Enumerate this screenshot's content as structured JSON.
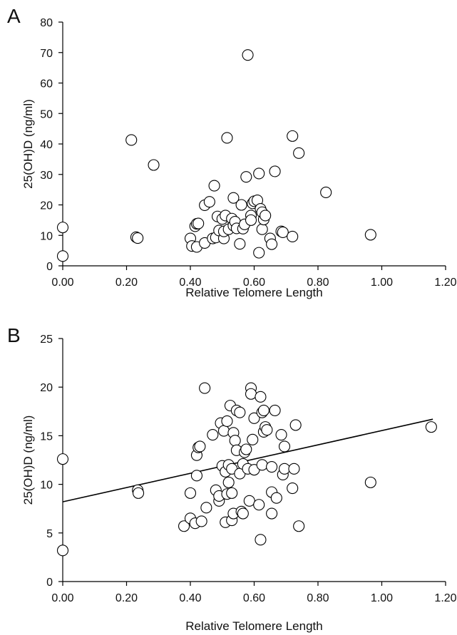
{
  "chart_data": [
    {
      "panel_label": "A",
      "type": "scatter",
      "title": "",
      "xlabel": "Relative Telomere Length",
      "ylabel": "25(OH)D (ng/ml)",
      "xlim": [
        0,
        1.2
      ],
      "ylim": [
        0,
        80
      ],
      "x_ticks": [
        "0.00",
        "0.20",
        "0.40",
        "0.60",
        "0.80",
        "1.00",
        "1.20"
      ],
      "y_ticks": [
        "0",
        "10",
        "20",
        "30",
        "40",
        "50",
        "60",
        "70",
        "80"
      ],
      "grid": false,
      "legend": "none",
      "points": [
        {
          "x": 0.0,
          "y": 12.6
        },
        {
          "x": 0.0,
          "y": 3.2
        },
        {
          "x": 0.215,
          "y": 41.3
        },
        {
          "x": 0.23,
          "y": 9.4
        },
        {
          "x": 0.235,
          "y": 9.1
        },
        {
          "x": 0.285,
          "y": 33.1
        },
        {
          "x": 0.4,
          "y": 9.0
        },
        {
          "x": 0.405,
          "y": 6.5
        },
        {
          "x": 0.415,
          "y": 13.0
        },
        {
          "x": 0.42,
          "y": 13.8
        },
        {
          "x": 0.42,
          "y": 6.2
        },
        {
          "x": 0.425,
          "y": 13.9
        },
        {
          "x": 0.445,
          "y": 7.5
        },
        {
          "x": 0.445,
          "y": 19.9
        },
        {
          "x": 0.46,
          "y": 21.0
        },
        {
          "x": 0.47,
          "y": 9.0
        },
        {
          "x": 0.475,
          "y": 26.3
        },
        {
          "x": 0.48,
          "y": 9.3
        },
        {
          "x": 0.485,
          "y": 16.2
        },
        {
          "x": 0.49,
          "y": 11.6
        },
        {
          "x": 0.5,
          "y": 15.4
        },
        {
          "x": 0.505,
          "y": 9.0
        },
        {
          "x": 0.505,
          "y": 11.3
        },
        {
          "x": 0.51,
          "y": 16.5
        },
        {
          "x": 0.515,
          "y": 42.0
        },
        {
          "x": 0.52,
          "y": 12.0
        },
        {
          "x": 0.53,
          "y": 15.5
        },
        {
          "x": 0.535,
          "y": 22.3
        },
        {
          "x": 0.535,
          "y": 13.2
        },
        {
          "x": 0.54,
          "y": 14.5
        },
        {
          "x": 0.545,
          "y": 12.3
        },
        {
          "x": 0.555,
          "y": 7.2
        },
        {
          "x": 0.56,
          "y": 20.0
        },
        {
          "x": 0.565,
          "y": 12.2
        },
        {
          "x": 0.57,
          "y": 13.6
        },
        {
          "x": 0.575,
          "y": 29.2
        },
        {
          "x": 0.58,
          "y": 69.2
        },
        {
          "x": 0.59,
          "y": 16.5
        },
        {
          "x": 0.59,
          "y": 15.0
        },
        {
          "x": 0.595,
          "y": 20.5
        },
        {
          "x": 0.6,
          "y": 21.2
        },
        {
          "x": 0.61,
          "y": 21.5
        },
        {
          "x": 0.615,
          "y": 4.3
        },
        {
          "x": 0.615,
          "y": 30.3
        },
        {
          "x": 0.62,
          "y": 18.7
        },
        {
          "x": 0.625,
          "y": 17.6
        },
        {
          "x": 0.625,
          "y": 12.0
        },
        {
          "x": 0.63,
          "y": 15.2
        },
        {
          "x": 0.635,
          "y": 16.5
        },
        {
          "x": 0.65,
          "y": 9.0
        },
        {
          "x": 0.655,
          "y": 7.1
        },
        {
          "x": 0.665,
          "y": 31.0
        },
        {
          "x": 0.685,
          "y": 11.3
        },
        {
          "x": 0.69,
          "y": 11.0
        },
        {
          "x": 0.72,
          "y": 42.6
        },
        {
          "x": 0.72,
          "y": 9.6
        },
        {
          "x": 0.74,
          "y": 37.0
        },
        {
          "x": 0.825,
          "y": 24.1
        },
        {
          "x": 0.965,
          "y": 10.2
        }
      ]
    },
    {
      "panel_label": "B",
      "type": "scatter",
      "title": "",
      "xlabel": "Relative Telomere Length",
      "ylabel": "25(OH)D (ng/ml)",
      "xlim": [
        0,
        1.2
      ],
      "ylim": [
        0,
        25
      ],
      "x_ticks": [
        "0.00",
        "0.20",
        "0.40",
        "0.60",
        "0.80",
        "1.00",
        "1.20"
      ],
      "y_ticks": [
        "0",
        "5",
        "10",
        "15",
        "20",
        "25"
      ],
      "grid": false,
      "legend": "none",
      "trendline": {
        "x": [
          0.0,
          1.16
        ],
        "y": [
          8.2,
          16.7
        ]
      },
      "points": [
        {
          "x": 0.0,
          "y": 12.6
        },
        {
          "x": 0.0,
          "y": 3.2
        },
        {
          "x": 0.235,
          "y": 9.4
        },
        {
          "x": 0.237,
          "y": 9.1
        },
        {
          "x": 0.38,
          "y": 5.7
        },
        {
          "x": 0.4,
          "y": 9.1
        },
        {
          "x": 0.4,
          "y": 6.5
        },
        {
          "x": 0.415,
          "y": 6.0
        },
        {
          "x": 0.42,
          "y": 13.0
        },
        {
          "x": 0.42,
          "y": 10.9
        },
        {
          "x": 0.425,
          "y": 13.8
        },
        {
          "x": 0.43,
          "y": 13.9
        },
        {
          "x": 0.435,
          "y": 6.2
        },
        {
          "x": 0.445,
          "y": 19.9
        },
        {
          "x": 0.45,
          "y": 7.6
        },
        {
          "x": 0.47,
          "y": 15.1
        },
        {
          "x": 0.48,
          "y": 9.4
        },
        {
          "x": 0.49,
          "y": 8.3
        },
        {
          "x": 0.49,
          "y": 8.8
        },
        {
          "x": 0.495,
          "y": 16.3
        },
        {
          "x": 0.5,
          "y": 11.9
        },
        {
          "x": 0.505,
          "y": 15.5
        },
        {
          "x": 0.51,
          "y": 6.1
        },
        {
          "x": 0.51,
          "y": 11.3
        },
        {
          "x": 0.515,
          "y": 9.0
        },
        {
          "x": 0.515,
          "y": 16.5
        },
        {
          "x": 0.52,
          "y": 12.0
        },
        {
          "x": 0.52,
          "y": 10.2
        },
        {
          "x": 0.525,
          "y": 18.1
        },
        {
          "x": 0.53,
          "y": 11.6
        },
        {
          "x": 0.53,
          "y": 9.1
        },
        {
          "x": 0.53,
          "y": 6.3
        },
        {
          "x": 0.535,
          "y": 15.3
        },
        {
          "x": 0.535,
          "y": 7.0
        },
        {
          "x": 0.54,
          "y": 14.5
        },
        {
          "x": 0.545,
          "y": 13.5
        },
        {
          "x": 0.545,
          "y": 17.6
        },
        {
          "x": 0.555,
          "y": 17.4
        },
        {
          "x": 0.555,
          "y": 11.1
        },
        {
          "x": 0.56,
          "y": 7.2
        },
        {
          "x": 0.565,
          "y": 12.1
        },
        {
          "x": 0.565,
          "y": 7.0
        },
        {
          "x": 0.57,
          "y": 13.3
        },
        {
          "x": 0.575,
          "y": 13.6
        },
        {
          "x": 0.58,
          "y": 11.6
        },
        {
          "x": 0.585,
          "y": 8.3
        },
        {
          "x": 0.59,
          "y": 19.9
        },
        {
          "x": 0.59,
          "y": 19.3
        },
        {
          "x": 0.595,
          "y": 14.6
        },
        {
          "x": 0.6,
          "y": 16.8
        },
        {
          "x": 0.6,
          "y": 11.5
        },
        {
          "x": 0.615,
          "y": 7.9
        },
        {
          "x": 0.62,
          "y": 19.0
        },
        {
          "x": 0.62,
          "y": 4.3
        },
        {
          "x": 0.625,
          "y": 17.4
        },
        {
          "x": 0.625,
          "y": 12.0
        },
        {
          "x": 0.63,
          "y": 17.6
        },
        {
          "x": 0.63,
          "y": 15.4
        },
        {
          "x": 0.635,
          "y": 15.9
        },
        {
          "x": 0.64,
          "y": 15.6
        },
        {
          "x": 0.655,
          "y": 11.8
        },
        {
          "x": 0.655,
          "y": 9.2
        },
        {
          "x": 0.655,
          "y": 7.0
        },
        {
          "x": 0.665,
          "y": 17.6
        },
        {
          "x": 0.67,
          "y": 8.6
        },
        {
          "x": 0.685,
          "y": 15.1
        },
        {
          "x": 0.69,
          "y": 11.0
        },
        {
          "x": 0.695,
          "y": 11.6
        },
        {
          "x": 0.695,
          "y": 13.9
        },
        {
          "x": 0.72,
          "y": 9.6
        },
        {
          "x": 0.725,
          "y": 11.6
        },
        {
          "x": 0.73,
          "y": 16.1
        },
        {
          "x": 0.74,
          "y": 5.7
        },
        {
          "x": 0.965,
          "y": 10.2
        },
        {
          "x": 1.155,
          "y": 15.9
        }
      ]
    }
  ]
}
